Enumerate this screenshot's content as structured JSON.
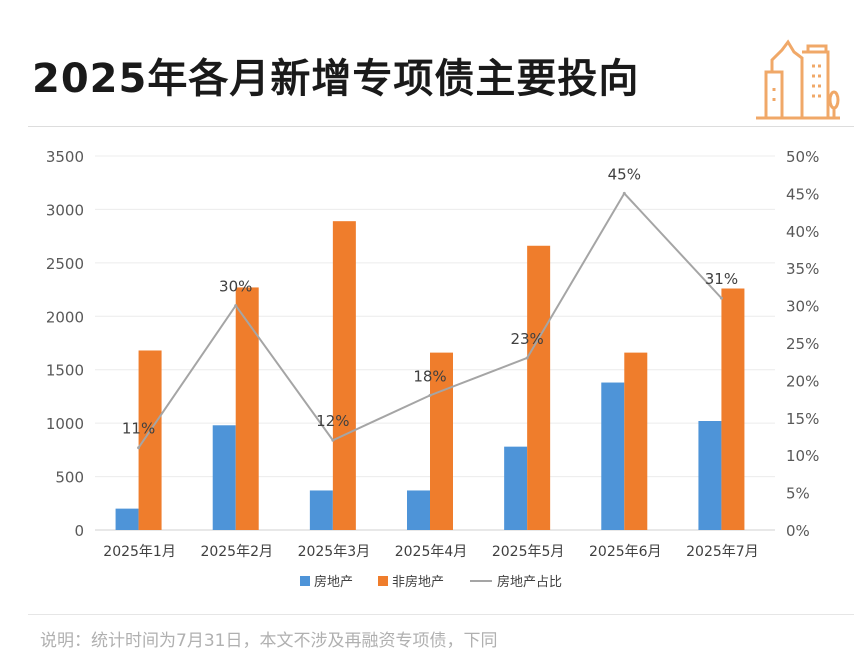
{
  "title": "2025年各月新增专项债主要投向",
  "note": "说明：统计时间为7月31日，本文不涉及再融资专项债，下同",
  "colors": {
    "real_estate": "#4e94d8",
    "non_real_estate": "#ef7d2c",
    "share_line": "#a5a5a5",
    "icon": "#f0a868"
  },
  "icon": "city-buildings-icon",
  "chart_data": {
    "type": "bar+line",
    "categories": [
      "2025年1月",
      "2025年2月",
      "2025年3月",
      "2025年4月",
      "2025年5月",
      "2025年6月",
      "2025年7月"
    ],
    "series": [
      {
        "name": "房地产",
        "type": "bar",
        "axis": "left",
        "values": [
          200,
          980,
          370,
          370,
          780,
          1380,
          1020
        ]
      },
      {
        "name": "非房地产",
        "type": "bar",
        "axis": "left",
        "values": [
          1680,
          2270,
          2890,
          1660,
          2660,
          1660,
          2260
        ]
      },
      {
        "name": "房地产占比",
        "type": "line",
        "axis": "right",
        "values": [
          11,
          30,
          12,
          18,
          23,
          45,
          31
        ],
        "labels": [
          "11%",
          "30%",
          "12%",
          "18%",
          "23%",
          "45%",
          "31%"
        ]
      }
    ],
    "ylim": [
      0,
      3500
    ],
    "yticks": [
      "0",
      "500",
      "1000",
      "1500",
      "2000",
      "2500",
      "3000",
      "3500"
    ],
    "y2lim": [
      0,
      50
    ],
    "y2ticks": [
      "0%",
      "5%",
      "10%",
      "15%",
      "20%",
      "25%",
      "30%",
      "35%",
      "40%",
      "45%",
      "50%"
    ],
    "grid": true,
    "legend": "bottom"
  }
}
